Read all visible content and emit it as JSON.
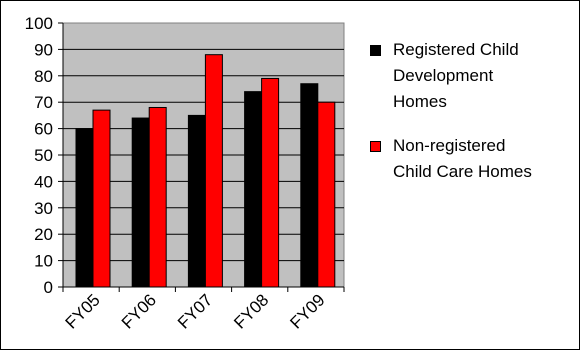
{
  "chart_data": {
    "type": "bar",
    "categories": [
      "FY05",
      "FY06",
      "FY07",
      "FY08",
      "FY09"
    ],
    "series": [
      {
        "name": "Registered Child Development Homes",
        "legend_lines": [
          "Registered Child",
          "Development",
          "Homes"
        ],
        "color": "#000000",
        "values": [
          60,
          64,
          65,
          74,
          77
        ]
      },
      {
        "name": "Non-registered Child Care Homes",
        "legend_lines": [
          "Non-registered",
          "Child Care Homes"
        ],
        "color": "#ff0000",
        "values": [
          67,
          68,
          88,
          79,
          70
        ]
      }
    ],
    "ylim": [
      0,
      100
    ],
    "yticks": [
      "0",
      "10",
      "20",
      "30",
      "40",
      "50",
      "60",
      "70",
      "80",
      "90",
      "100"
    ],
    "grid": true,
    "legend_position": "right",
    "plot_background": "#c0c0c0"
  }
}
